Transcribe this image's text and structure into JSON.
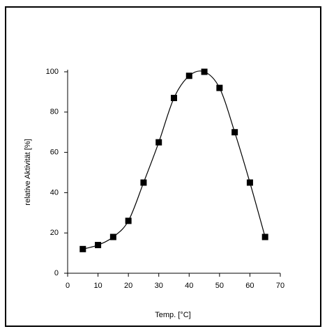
{
  "chart_data": {
    "type": "line",
    "x_label": "Temp. [°C]",
    "y_label": "relative Aktivität [%]",
    "x": [
      5,
      10,
      15,
      20,
      25,
      30,
      35,
      40,
      45,
      50,
      55,
      60,
      65
    ],
    "series": [
      {
        "color": "#000000",
        "values": [
          12,
          14,
          18,
          26,
          45,
          65,
          87,
          98,
          100,
          92,
          70,
          45,
          18
        ]
      }
    ],
    "xlim": [
      0,
      70
    ],
    "xticks": [
      0,
      10,
      20,
      30,
      40,
      50,
      60,
      70
    ],
    "ylim": [
      0,
      100
    ],
    "yticks": [
      0,
      20,
      40,
      60,
      80,
      100
    ],
    "smooth": true,
    "marker": "square"
  }
}
